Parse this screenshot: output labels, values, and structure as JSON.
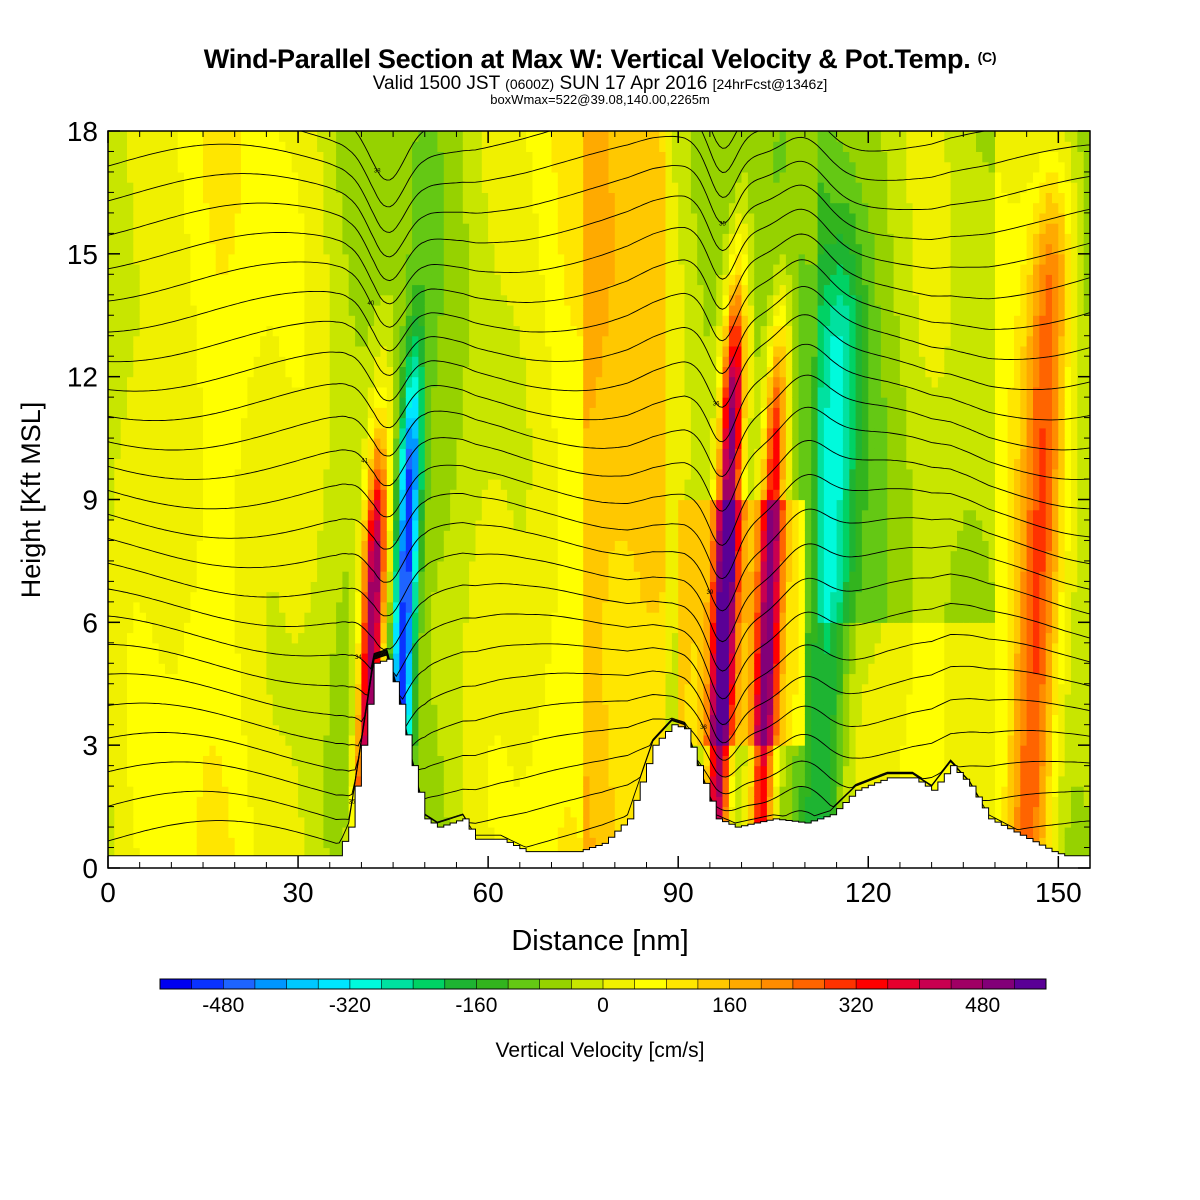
{
  "title": {
    "main": "Wind-Parallel Section at Max W: Vertical Velocity & Pot.Temp.",
    "copyright": "(C)",
    "valid_prefix": "Valid 1500 JST",
    "valid_utc": "(0600Z)",
    "valid_date": "SUN 17 Apr 2016",
    "forecast": "[24hrFcst@1346z]",
    "box": "boxWmax=522@39.08,140.00,2265m"
  },
  "chart_data": {
    "type": "heatmap",
    "xlabel": "Distance [nm]",
    "ylabel": "Height [Kft MSL]",
    "xlim": [
      0,
      155
    ],
    "ylim": [
      0,
      18
    ],
    "x_ticks": [
      "0",
      "30",
      "60",
      "90",
      "120",
      "150"
    ],
    "y_ticks": [
      "0",
      "3",
      "6",
      "9",
      "12",
      "15",
      "18"
    ],
    "colorbar": {
      "label": "Vertical Velocity [cm/s]",
      "ticks": [
        "-480",
        "-320",
        "-160",
        "0",
        "160",
        "320",
        "480"
      ],
      "min": -560,
      "max": 560,
      "step": 40,
      "colors": [
        "#0000f0",
        "#0a32ff",
        "#1e64ff",
        "#0096ff",
        "#00c8ff",
        "#00e6ff",
        "#00fadc",
        "#00e1a0",
        "#00d264",
        "#1eb432",
        "#32b41e",
        "#64c814",
        "#96d200",
        "#c8e600",
        "#f0f000",
        "#ffff00",
        "#ffe600",
        "#ffc800",
        "#ffaa00",
        "#ff8c00",
        "#ff6400",
        "#ff3200",
        "#ff0000",
        "#e6002d",
        "#c80050",
        "#a00064",
        "#820078",
        "#5a0096"
      ]
    },
    "velocity_features": [
      {
        "x": 41,
        "z_top": 7,
        "w": 520
      },
      {
        "x": 46,
        "z_top": 9,
        "w": -480
      },
      {
        "x": 96.5,
        "z_top": 11,
        "w": 520
      },
      {
        "x": 103.5,
        "z_top": 10,
        "w": 400
      },
      {
        "x": 113,
        "z_top": 12,
        "w": -200
      },
      {
        "x": 146,
        "z_top": 14,
        "w": 280
      }
    ],
    "terrain": [
      {
        "x": 0,
        "z": 0.3
      },
      {
        "x": 36,
        "z": 0.3
      },
      {
        "x": 38,
        "z": 1.0
      },
      {
        "x": 40,
        "z": 3.0
      },
      {
        "x": 42,
        "z": 5.0
      },
      {
        "x": 44,
        "z": 5.1
      },
      {
        "x": 46,
        "z": 4.0
      },
      {
        "x": 48,
        "z": 2.5
      },
      {
        "x": 50,
        "z": 1.2
      },
      {
        "x": 52,
        "z": 1.0
      },
      {
        "x": 56,
        "z": 1.2
      },
      {
        "x": 58,
        "z": 0.7
      },
      {
        "x": 62,
        "z": 0.7
      },
      {
        "x": 66,
        "z": 0.4
      },
      {
        "x": 74,
        "z": 0.4
      },
      {
        "x": 78,
        "z": 0.6
      },
      {
        "x": 82,
        "z": 1.2
      },
      {
        "x": 86,
        "z": 3.0
      },
      {
        "x": 89,
        "z": 3.5
      },
      {
        "x": 91,
        "z": 3.4
      },
      {
        "x": 93,
        "z": 2.5
      },
      {
        "x": 96,
        "z": 1.2
      },
      {
        "x": 99,
        "z": 1.0
      },
      {
        "x": 105,
        "z": 1.2
      },
      {
        "x": 110,
        "z": 1.1
      },
      {
        "x": 114,
        "z": 1.3
      },
      {
        "x": 118,
        "z": 1.9
      },
      {
        "x": 123,
        "z": 2.2
      },
      {
        "x": 127,
        "z": 2.2
      },
      {
        "x": 130,
        "z": 1.9
      },
      {
        "x": 133,
        "z": 2.5
      },
      {
        "x": 136,
        "z": 2.0
      },
      {
        "x": 139,
        "z": 1.2
      },
      {
        "x": 144,
        "z": 0.8
      },
      {
        "x": 149,
        "z": 0.4
      },
      {
        "x": 151,
        "z": 0.3
      },
      {
        "x": 155,
        "z": 0.3
      }
    ],
    "theta_contours": {
      "count": 26,
      "annotations": [
        "34",
        "35",
        "36",
        "39",
        "38",
        "40",
        "41"
      ]
    }
  }
}
